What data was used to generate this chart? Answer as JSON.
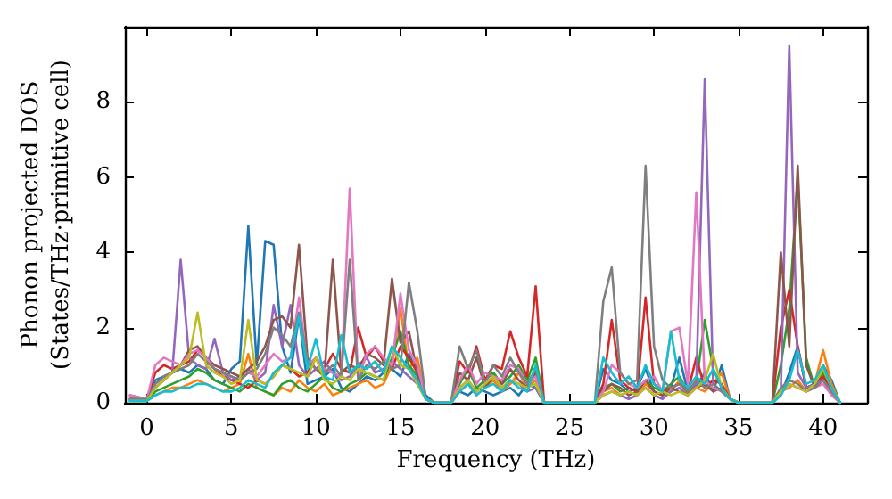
{
  "chart_data": {
    "type": "line",
    "xlabel": "Frequency (THz)",
    "ylabel": "Phonon projected DOS\n(States/THz·primitive cell)",
    "x": [
      -1,
      -0.5,
      0,
      0.5,
      1,
      1.5,
      2,
      2.5,
      3,
      3.5,
      4,
      4.5,
      5,
      5.5,
      6,
      6.5,
      7,
      7.5,
      8,
      8.5,
      9,
      9.5,
      10,
      10.5,
      11,
      11.5,
      12,
      12.5,
      13,
      13.5,
      14,
      14.5,
      15,
      15.5,
      16,
      16.5,
      17,
      17.5,
      18,
      18.5,
      19,
      19.5,
      20,
      20.5,
      21,
      21.5,
      22,
      22.5,
      23,
      23.5,
      24,
      24.5,
      25,
      25.5,
      26,
      26.5,
      27,
      27.5,
      28,
      28.5,
      29,
      29.5,
      30,
      30.5,
      31,
      31.5,
      32,
      32.5,
      33,
      33.5,
      34,
      34.5,
      35,
      35.5,
      36,
      36.5,
      37,
      37.5,
      38,
      38.5,
      39,
      39.5,
      40,
      40.5,
      41
    ],
    "xlim": [
      -1.3,
      42.6
    ],
    "xticks": [
      0,
      5,
      10,
      15,
      20,
      25,
      30,
      35,
      40
    ],
    "ylim": [
      0,
      10
    ],
    "yticks": [
      0,
      2,
      4,
      6,
      8
    ],
    "grid": false,
    "line_style": "solid",
    "series": [
      {
        "color": "#1f77b4",
        "values": [
          null,
          null,
          0.1,
          0.6,
          0.7,
          0.8,
          0.9,
          0.8,
          1.0,
          0.9,
          0.6,
          0.5,
          0.9,
          1.1,
          4.7,
          1.0,
          4.3,
          4.2,
          1.5,
          0.8,
          2.3,
          0.5,
          0.6,
          0.7,
          0.9,
          0.4,
          0.3,
          0.5,
          0.7,
          0.6,
          0.8,
          0.9,
          0.7,
          1.3,
          0.8,
          0.2,
          0,
          0,
          0,
          0.3,
          0.2,
          0.4,
          0.3,
          0.2,
          0.3,
          0.4,
          0.2,
          0.5,
          0.4,
          0,
          0,
          0,
          0,
          0,
          0,
          0,
          0.9,
          0.6,
          0.5,
          0.3,
          0.4,
          0.9,
          0.3,
          0.2,
          0.4,
          1.2,
          0.3,
          0.4,
          0.8,
          0.3,
          1.0,
          0.1,
          0,
          0,
          0,
          0,
          0,
          0.2,
          0.8,
          1.5,
          0.4,
          0.5,
          1.0,
          0.6,
          0
        ]
      },
      {
        "color": "#ff7f0e",
        "values": [
          null,
          null,
          0.05,
          0.2,
          0.3,
          0.4,
          0.4,
          0.5,
          0.6,
          0.5,
          0.4,
          0.3,
          0.4,
          0.5,
          1.3,
          0.4,
          0.3,
          0.2,
          0.4,
          0.3,
          0.6,
          0.4,
          0.3,
          0.5,
          0.2,
          0.3,
          0.4,
          0.5,
          0.6,
          0.4,
          0.5,
          1.0,
          2.5,
          0.9,
          1.2,
          0.1,
          0,
          0,
          0,
          0.3,
          0.5,
          0.2,
          0.4,
          0.6,
          0.3,
          0.5,
          0.8,
          0.4,
          0.6,
          0,
          0,
          0,
          0,
          0,
          0,
          0,
          0.3,
          0.4,
          0.2,
          0.3,
          0.2,
          0.5,
          0.3,
          0.2,
          0.3,
          0.6,
          0.2,
          0.4,
          0.3,
          0.5,
          0.8,
          0.1,
          0,
          0,
          0,
          0,
          0,
          0.3,
          0.4,
          0.6,
          0.3,
          0.5,
          1.4,
          0.5,
          0
        ]
      },
      {
        "color": "#2ca02c",
        "values": [
          0.05,
          0.05,
          0.05,
          0.3,
          0.4,
          0.5,
          0.6,
          0.7,
          0.9,
          0.8,
          0.6,
          0.5,
          0.4,
          0.3,
          0.5,
          0.4,
          0.3,
          0.2,
          0.5,
          0.6,
          0.4,
          0.3,
          0.5,
          0.7,
          0.4,
          0.3,
          0.5,
          0.6,
          0.8,
          0.7,
          0.6,
          1.2,
          1.9,
          1.0,
          0.7,
          0.1,
          0,
          0,
          0,
          0.5,
          0.9,
          0.4,
          0.6,
          0.8,
          0.5,
          0.7,
          1.0,
          0.6,
          1.2,
          0,
          0,
          0,
          0,
          0,
          0,
          0,
          0.4,
          0.5,
          0.3,
          0.4,
          0.3,
          0.6,
          0.4,
          0.3,
          0.5,
          0.7,
          0.3,
          0.5,
          2.2,
          0.9,
          0.4,
          0.1,
          0,
          0,
          0,
          0,
          0,
          1.0,
          2.5,
          6.0,
          1.2,
          0.4,
          0.8,
          0.3,
          0
        ]
      },
      {
        "color": "#d62728",
        "values": [
          0.1,
          0.1,
          0.1,
          0.8,
          1.0,
          0.9,
          1.0,
          1.1,
          1.4,
          1.2,
          0.9,
          0.7,
          0.6,
          0.5,
          0.4,
          0.6,
          0.5,
          0.7,
          1.0,
          0.9,
          0.7,
          0.8,
          1.2,
          0.9,
          1.3,
          0.9,
          0.8,
          2.0,
          1.2,
          1.5,
          1.1,
          0.9,
          1.5,
          1.2,
          0.8,
          0.1,
          0,
          0,
          0,
          1.1,
          0.8,
          1.5,
          0.6,
          1.0,
          0.9,
          1.9,
          1.2,
          0.7,
          3.1,
          0,
          0,
          0,
          0,
          0,
          0,
          0,
          0.5,
          2.2,
          0.6,
          0.4,
          0.3,
          2.8,
          0.5,
          0.3,
          0.4,
          0.5,
          0.3,
          1.2,
          0.4,
          0.6,
          0.5,
          0.1,
          0,
          0,
          0,
          0,
          0,
          2.0,
          3.0,
          1.5,
          0.4,
          0.5,
          0.7,
          0.3,
          0
        ]
      },
      {
        "color": "#9467bd",
        "values": [
          0.2,
          0.15,
          0.1,
          0.5,
          0.7,
          0.8,
          3.8,
          1.2,
          1.0,
          0.9,
          1.7,
          0.8,
          0.6,
          0.7,
          0.9,
          0.6,
          0.8,
          2.6,
          1.5,
          2.6,
          1.0,
          0.7,
          0.9,
          1.1,
          0.8,
          0.6,
          0.7,
          1.0,
          1.2,
          0.8,
          0.9,
          1.1,
          0.9,
          0.7,
          0.5,
          0.1,
          0,
          0,
          0,
          0.4,
          0.6,
          0.3,
          0.5,
          0.7,
          0.4,
          0.6,
          0.5,
          0.3,
          0.4,
          0,
          0,
          0,
          0,
          0,
          0,
          0,
          0.2,
          0.3,
          0.2,
          0.1,
          0.2,
          0.4,
          0.2,
          0.1,
          0.3,
          0.4,
          0.2,
          0.5,
          8.6,
          0.5,
          0.3,
          0.1,
          0,
          0,
          0,
          0,
          0,
          0.3,
          9.5,
          0.8,
          0.4,
          0.5,
          0.6,
          0.3,
          0
        ]
      },
      {
        "color": "#8c564b",
        "values": [
          0.1,
          0.1,
          0.1,
          0.4,
          0.6,
          0.8,
          1.0,
          1.4,
          1.5,
          1.2,
          1.0,
          0.9,
          0.8,
          0.7,
          0.9,
          1.1,
          1.5,
          2.2,
          2.3,
          2.0,
          4.2,
          1.2,
          0.9,
          0.7,
          3.8,
          0.8,
          1.0,
          0.9,
          1.3,
          1.2,
          1.0,
          3.3,
          1.6,
          1.9,
          0.8,
          0.1,
          0,
          0,
          0,
          0.8,
          0.6,
          1.2,
          0.4,
          0.7,
          0.5,
          0.9,
          0.6,
          0.4,
          0.8,
          0,
          0,
          0,
          0,
          0,
          0,
          0,
          0.3,
          0.5,
          0.4,
          0.2,
          0.3,
          0.6,
          0.3,
          0.2,
          0.4,
          0.3,
          0.2,
          0.4,
          0.5,
          0.3,
          0.4,
          0.1,
          0,
          0,
          0,
          0,
          0,
          4.0,
          1.5,
          6.3,
          1.0,
          0.4,
          0.6,
          0.3,
          0
        ]
      },
      {
        "color": "#e377c2",
        "values": [
          0.2,
          0.15,
          0.1,
          1.0,
          1.2,
          1.1,
          1.0,
          1.3,
          1.4,
          1.2,
          0.9,
          0.8,
          0.7,
          0.6,
          0.8,
          0.7,
          1.0,
          1.3,
          1.1,
          1.2,
          2.8,
          1.0,
          1.2,
          0.9,
          0.8,
          0.7,
          5.7,
          0.6,
          1.3,
          1.5,
          1.2,
          1.0,
          2.9,
          1.4,
          1.0,
          0.1,
          0,
          0,
          0,
          0.6,
          1.0,
          0.5,
          0.8,
          0.7,
          0.6,
          1.0,
          0.9,
          0.5,
          0.7,
          0,
          0,
          0,
          0,
          0,
          0,
          0,
          0.3,
          1.0,
          0.8,
          0.5,
          0.4,
          0.6,
          0.7,
          0.3,
          1.9,
          2.0,
          0.5,
          5.6,
          0.6,
          0.4,
          0.3,
          0.1,
          0,
          0,
          0,
          0,
          0,
          0.3,
          0.5,
          0.4,
          0.3,
          0.4,
          0.5,
          0.2,
          0
        ]
      },
      {
        "color": "#7f7f7f",
        "values": [
          0.1,
          0.1,
          0.1,
          0.5,
          0.7,
          0.8,
          0.9,
          1.0,
          1.3,
          1.1,
          0.9,
          0.8,
          0.7,
          0.6,
          0.8,
          0.9,
          1.3,
          2.0,
          1.8,
          1.5,
          2.4,
          1.1,
          0.9,
          0.8,
          1.0,
          0.7,
          3.8,
          0.6,
          1.0,
          0.9,
          1.1,
          0.9,
          1.0,
          3.2,
          1.9,
          0.1,
          0,
          0,
          0,
          1.5,
          0.9,
          1.4,
          0.5,
          1.0,
          0.7,
          1.2,
          0.8,
          0.5,
          0.9,
          0,
          0,
          0,
          0,
          0,
          0,
          0,
          2.7,
          3.6,
          0.8,
          0.5,
          0.6,
          6.3,
          1.5,
          0.6,
          0.4,
          0.5,
          0.3,
          0.6,
          0.4,
          0.5,
          0.3,
          0.1,
          0,
          0,
          0,
          0,
          0,
          0.4,
          0.6,
          0.5,
          0.3,
          0.4,
          0.6,
          0.3,
          0
        ]
      },
      {
        "color": "#bcbd22",
        "values": [
          0.05,
          0.05,
          0.05,
          0.4,
          0.6,
          0.8,
          1.0,
          1.2,
          2.4,
          1.0,
          0.8,
          0.7,
          0.5,
          0.6,
          2.2,
          0.6,
          0.5,
          0.7,
          1.0,
          0.9,
          0.8,
          0.7,
          1.2,
          0.6,
          0.5,
          0.7,
          0.6,
          0.9,
          0.8,
          0.7,
          0.6,
          1.5,
          1.0,
          0.9,
          0.5,
          0.1,
          0,
          0,
          0,
          0.4,
          0.6,
          0.3,
          0.5,
          0.7,
          0.4,
          0.6,
          0.5,
          0.4,
          0.5,
          0,
          0,
          0,
          0,
          0,
          0,
          0,
          0.2,
          0.3,
          0.2,
          0.3,
          0.2,
          0.4,
          0.2,
          0.3,
          0.2,
          0.3,
          0.2,
          0.4,
          0.6,
          1.3,
          0.4,
          0.1,
          0,
          0,
          0,
          0,
          0,
          0.3,
          0.5,
          0.4,
          0.3,
          0.5,
          0.9,
          0.4,
          0
        ]
      },
      {
        "color": "#17becf",
        "values": [
          0.05,
          0.05,
          0.05,
          0.2,
          0.3,
          0.3,
          0.4,
          0.4,
          0.5,
          0.5,
          0.4,
          0.3,
          0.3,
          0.4,
          0.6,
          0.5,
          0.4,
          0.8,
          1.0,
          1.2,
          2.3,
          0.9,
          1.7,
          0.7,
          0.6,
          1.8,
          0.8,
          1.0,
          0.9,
          1.1,
          0.8,
          1.5,
          1.2,
          0.9,
          0.6,
          0.1,
          0,
          0,
          0,
          0.3,
          0.5,
          0.2,
          0.4,
          0.5,
          0.3,
          0.6,
          0.4,
          0.3,
          1.0,
          0,
          0,
          0,
          0,
          0,
          0,
          0,
          1.2,
          0.8,
          0.5,
          0.7,
          0.4,
          1.0,
          0.5,
          0.3,
          1.9,
          0.6,
          0.4,
          0.7,
          0.5,
          0.9,
          0.4,
          0.1,
          0,
          0,
          0,
          0,
          0,
          0.2,
          0.6,
          1.4,
          0.5,
          0.6,
          1.0,
          0.4,
          0
        ]
      }
    ]
  }
}
